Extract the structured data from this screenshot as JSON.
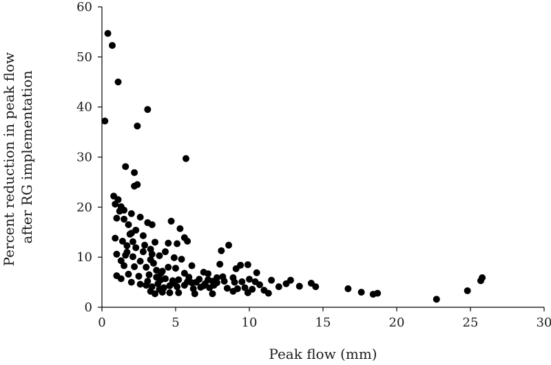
{
  "chart_data": {
    "type": "scatter",
    "title": "",
    "xlabel": "Peak flow (mm)",
    "ylabel_lines": [
      "Percent reduction in peak flow",
      "after RG implementation"
    ],
    "xlim": [
      0,
      30
    ],
    "ylim": [
      0,
      60
    ],
    "x_ticks": [
      0,
      5,
      10,
      15,
      20,
      25,
      30
    ],
    "y_ticks": [
      0,
      10,
      20,
      30,
      40,
      50,
      60
    ],
    "grid": false,
    "legend": "none",
    "marker_color": "#000000",
    "series": [
      {
        "points": [
          [
            0.4,
            54.7
          ],
          [
            0.7,
            52.3
          ],
          [
            1.1,
            45.0
          ],
          [
            3.1,
            39.5
          ],
          [
            0.2,
            37.2
          ],
          [
            2.4,
            36.2
          ],
          [
            5.7,
            29.7
          ],
          [
            1.6,
            28.1
          ],
          [
            2.2,
            26.9
          ],
          [
            2.4,
            24.5
          ],
          [
            2.2,
            24.2
          ],
          [
            0.8,
            22.2
          ],
          [
            1.1,
            21.5
          ],
          [
            0.9,
            20.6
          ],
          [
            1.3,
            20.1
          ],
          [
            1.2,
            19.2
          ],
          [
            2.0,
            18.7
          ],
          [
            1.0,
            17.8
          ],
          [
            1.5,
            17.6
          ],
          [
            2.6,
            18.0
          ],
          [
            1.8,
            16.5
          ],
          [
            3.1,
            16.9
          ],
          [
            3.4,
            16.5
          ],
          [
            2.3,
            15.4
          ],
          [
            1.9,
            14.6
          ],
          [
            2.8,
            14.3
          ],
          [
            0.9,
            13.8
          ],
          [
            1.4,
            13.2
          ],
          [
            2.1,
            13.1
          ],
          [
            3.6,
            13.0
          ],
          [
            1.7,
            12.3
          ],
          [
            2.3,
            11.9
          ],
          [
            3.3,
            11.6
          ],
          [
            4.5,
            12.8
          ],
          [
            5.1,
            12.7
          ],
          [
            5.3,
            15.7
          ],
          [
            5.6,
            13.9
          ],
          [
            5.8,
            13.2
          ],
          [
            4.7,
            17.2
          ],
          [
            2.8,
            11.1
          ],
          [
            1.6,
            10.4
          ],
          [
            2.1,
            10.1
          ],
          [
            1.0,
            10.6
          ],
          [
            1.3,
            9.3
          ],
          [
            2.6,
            9.2
          ],
          [
            3.3,
            9.5
          ],
          [
            3.9,
            10.3
          ],
          [
            4.3,
            11.1
          ],
          [
            4.9,
            9.9
          ],
          [
            5.4,
            9.6
          ],
          [
            1.5,
            8.3
          ],
          [
            2.2,
            8.1
          ],
          [
            3.0,
            8.0
          ],
          [
            3.5,
            8.8
          ],
          [
            4.1,
            7.2
          ],
          [
            5.0,
            7.8
          ],
          [
            6.1,
            8.3
          ],
          [
            6.9,
            7.0
          ],
          [
            7.2,
            6.7
          ],
          [
            8.0,
            8.6
          ],
          [
            8.1,
            11.3
          ],
          [
            8.6,
            12.4
          ],
          [
            9.1,
            7.7
          ],
          [
            9.4,
            8.4
          ],
          [
            9.9,
            8.5
          ],
          [
            10.5,
            6.9
          ],
          [
            1.0,
            6.3
          ],
          [
            1.8,
            6.6
          ],
          [
            2.5,
            6.2
          ],
          [
            3.2,
            6.5
          ],
          [
            3.7,
            6.0
          ],
          [
            4.3,
            5.7
          ],
          [
            4.8,
            5.3
          ],
          [
            5.2,
            5.5
          ],
          [
            5.8,
            5.1
          ],
          [
            6.4,
            5.0
          ],
          [
            7.0,
            4.7
          ],
          [
            7.5,
            5.2
          ],
          [
            7.8,
            5.9
          ],
          [
            8.3,
            5.2
          ],
          [
            8.9,
            5.9
          ],
          [
            9.5,
            5.1
          ],
          [
            10.0,
            5.6
          ],
          [
            10.4,
            5.1
          ],
          [
            11.5,
            5.4
          ],
          [
            12.5,
            4.7
          ],
          [
            12.8,
            5.4
          ],
          [
            13.4,
            4.2
          ],
          [
            14.2,
            4.8
          ],
          [
            14.5,
            4.1
          ],
          [
            1.3,
            5.7
          ],
          [
            2.0,
            5.0
          ],
          [
            2.6,
            4.6
          ],
          [
            3.0,
            4.4
          ],
          [
            3.4,
            4.1
          ],
          [
            3.8,
            4.7
          ],
          [
            4.2,
            3.9
          ],
          [
            4.6,
            4.3
          ],
          [
            5.1,
            4.1
          ],
          [
            5.6,
            4.4
          ],
          [
            6.2,
            3.7
          ],
          [
            6.7,
            4.0
          ],
          [
            7.3,
            3.9
          ],
          [
            7.6,
            4.4
          ],
          [
            8.5,
            3.8
          ],
          [
            9.2,
            3.7
          ],
          [
            9.7,
            3.9
          ],
          [
            10.2,
            3.6
          ],
          [
            11.0,
            3.4
          ],
          [
            11.3,
            2.8
          ],
          [
            3.3,
            3.2
          ],
          [
            3.6,
            2.7
          ],
          [
            4.1,
            3.0
          ],
          [
            4.6,
            2.9
          ],
          [
            5.2,
            2.9
          ],
          [
            6.3,
            2.7
          ],
          [
            7.5,
            2.7
          ],
          [
            8.9,
            3.2
          ],
          [
            9.9,
            2.9
          ],
          [
            16.7,
            3.7
          ],
          [
            17.6,
            3.0
          ],
          [
            18.4,
            2.6
          ],
          [
            18.7,
            2.8
          ],
          [
            22.7,
            1.6
          ],
          [
            24.8,
            3.3
          ],
          [
            25.7,
            5.3
          ],
          [
            25.8,
            5.9
          ],
          [
            4.0,
            5.5
          ],
          [
            5.9,
            6.0
          ],
          [
            7.8,
            4.9
          ],
          [
            2.9,
            12.4
          ],
          [
            3.7,
            7.4
          ],
          [
            4.5,
            8.0
          ],
          [
            6.6,
            5.6
          ],
          [
            1.7,
            11.0
          ],
          [
            2.0,
            14.8
          ],
          [
            1.5,
            19.4
          ],
          [
            3.4,
            10.6
          ],
          [
            4.0,
            6.8
          ],
          [
            6.9,
            4.3
          ],
          [
            8.2,
            6.1
          ],
          [
            10.7,
            4.5
          ],
          [
            12.0,
            4.1
          ],
          [
            3.1,
            5.2
          ],
          [
            3.9,
            3.6
          ],
          [
            4.9,
            4.8
          ],
          [
            5.6,
            6.8
          ],
          [
            6.1,
            4.9
          ],
          [
            7.2,
            5.5
          ],
          [
            9.0,
            5.0
          ]
        ]
      }
    ]
  }
}
